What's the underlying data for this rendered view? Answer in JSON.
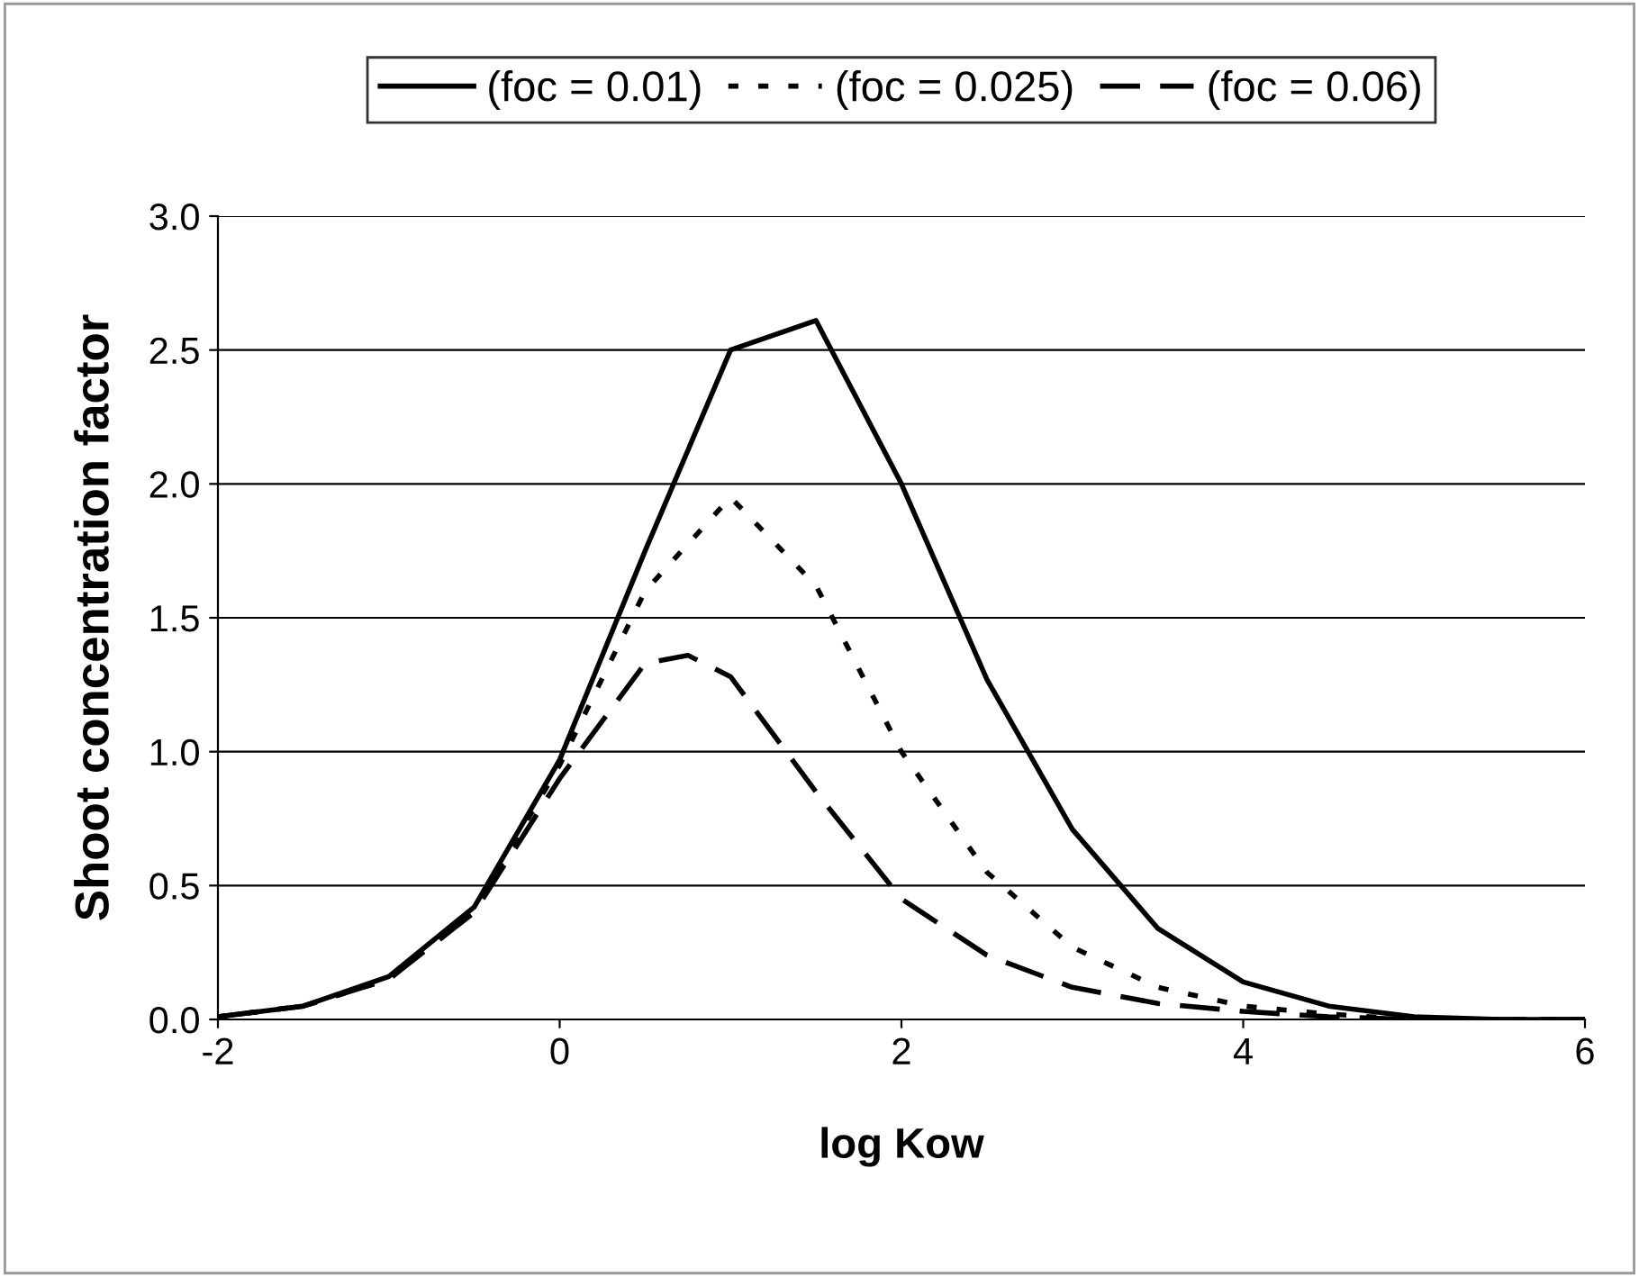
{
  "chart_data": {
    "type": "line",
    "xlabel": "log Kow",
    "ylabel": "Shoot concentration factor",
    "x": [
      -2,
      -1.5,
      -1,
      -0.5,
      0,
      0.5,
      1,
      1.5,
      2,
      2.5,
      3,
      3.5,
      4,
      4.5,
      5,
      5.5,
      6
    ],
    "series": [
      {
        "name": "(foc = 0.01)",
        "color": "#000000",
        "line_style": "solid",
        "values": [
          0.01,
          0.05,
          0.16,
          0.42,
          0.97,
          1.75,
          2.5,
          2.61,
          2.0,
          1.27,
          0.71,
          0.34,
          0.14,
          0.05,
          0.01,
          0.0,
          0.0
        ]
      },
      {
        "name": "(foc = 0.025)",
        "color": "#000000",
        "line_style": "dotted",
        "values": [
          0.01,
          0.05,
          0.15,
          0.41,
          0.95,
          1.6,
          1.95,
          1.62,
          1.0,
          0.55,
          0.27,
          0.12,
          0.05,
          0.02,
          0.0,
          0.0,
          0.0
        ]
      },
      {
        "name": "(foc = 0.06)",
        "color": "#000000",
        "line_style": "dashed",
        "x": [
          -2,
          -1.5,
          -1,
          -0.5,
          0,
          0.5,
          0.75,
          1,
          1.5,
          2,
          2.5,
          3,
          3.5,
          4,
          4.5,
          5,
          5.5,
          6
        ],
        "values": [
          0.01,
          0.05,
          0.15,
          0.4,
          0.9,
          1.33,
          1.36,
          1.28,
          0.85,
          0.45,
          0.24,
          0.12,
          0.06,
          0.03,
          0.01,
          0.0,
          0.0,
          0.0
        ]
      }
    ],
    "xlim": [
      -2,
      6
    ],
    "xticks": [
      -2,
      0,
      2,
      4,
      6
    ],
    "ylim": [
      0,
      3
    ],
    "yticks": [
      {
        "value": 0,
        "label": "0.0"
      },
      {
        "value": 0.5,
        "label": "0.5"
      },
      {
        "value": 1,
        "label": "1.0"
      },
      {
        "value": 1.5,
        "label": "1.5"
      },
      {
        "value": 2,
        "label": "2.0"
      },
      {
        "value": 2.5,
        "label": "2.5"
      },
      {
        "value": 3,
        "label": "3.0"
      }
    ],
    "grid": "y",
    "legend": "top",
    "marker": "none"
  }
}
